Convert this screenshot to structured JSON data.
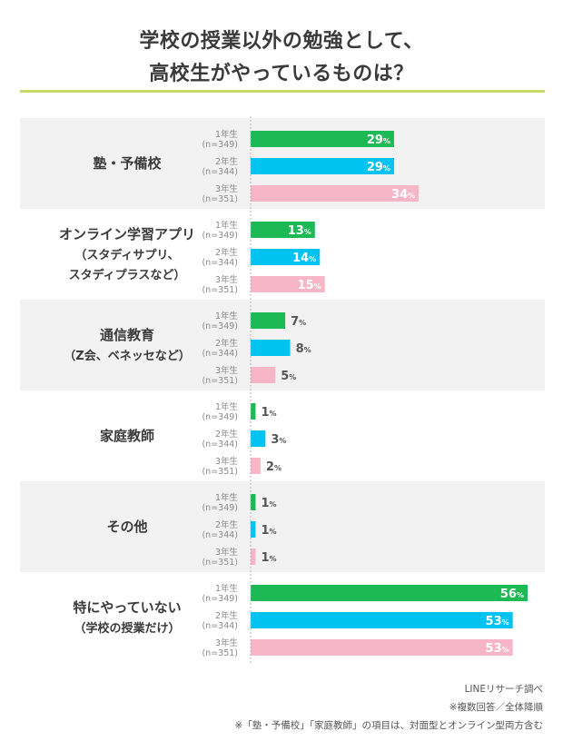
{
  "title_line1": "学校の授業以外の勉強として、",
  "title_line2": "高校生がやっているものは？",
  "colors": {
    "year1": "#1db954",
    "year2": "#00c3f2",
    "year3": "#f6b6c8",
    "band": "#f2f2f2",
    "rule": "#c8d96a"
  },
  "chart_data": {
    "type": "bar",
    "orientation": "horizontal",
    "unit": "%",
    "xlim": [
      0,
      56
    ],
    "grid": false,
    "series_labels": [
      {
        "year": "1年生",
        "n": "(n=349)"
      },
      {
        "year": "2年生",
        "n": "(n=344)"
      },
      {
        "year": "3年生",
        "n": "(n=351)"
      }
    ],
    "groups": [
      {
        "label_lines": [
          "塾・予備校"
        ],
        "values": [
          29,
          29,
          34
        ]
      },
      {
        "label_lines": [
          "オンライン学習アプリ",
          "（スタディサプリ、",
          "スタディプラスなど）"
        ],
        "values": [
          13,
          14,
          15
        ]
      },
      {
        "label_lines": [
          "通信教育",
          "（Z会、ベネッセなど）"
        ],
        "values": [
          7,
          8,
          5
        ]
      },
      {
        "label_lines": [
          "家庭教師"
        ],
        "values": [
          1,
          3,
          2
        ]
      },
      {
        "label_lines": [
          "その他"
        ],
        "values": [
          1,
          1,
          1
        ]
      },
      {
        "label_lines": [
          "特にやっていない",
          "（学校の授業だけ）"
        ],
        "values": [
          56,
          53,
          53
        ]
      }
    ]
  },
  "footer": {
    "source": "LINEリサーチ調べ",
    "note1": "※複数回答／全体降順",
    "note2": "※「塾・予備校」「家庭教師」の項目は、対面型とオンライン型両方含む"
  }
}
